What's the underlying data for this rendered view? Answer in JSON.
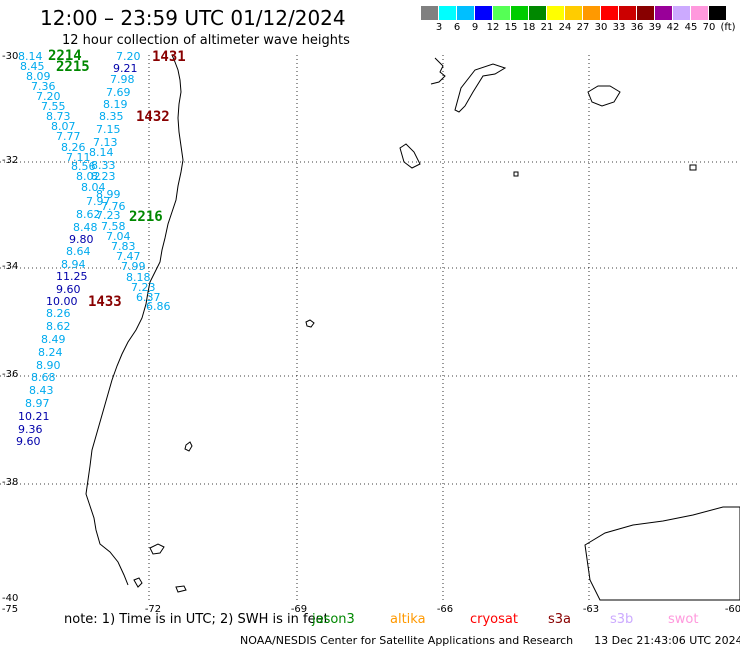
{
  "header": {
    "title": "12:00 – 23:59 UTC 01/12/2024",
    "subtitle": "12 hour collection of altimeter wave heights"
  },
  "color_scale": {
    "unit": "(ft)",
    "colors": [
      "#808080",
      "#00ffff",
      "#00bfff",
      "#0000ff",
      "#55ff55",
      "#00cc00",
      "#008800",
      "#ffff00",
      "#ffcc00",
      "#ff9900",
      "#ff0000",
      "#cc0000",
      "#880000",
      "#990099",
      "#ccaaff",
      "#ff99dd",
      "#000000"
    ],
    "labels": [
      "3",
      "6",
      "9",
      "12",
      "15",
      "18",
      "21",
      "24",
      "27",
      "30",
      "33",
      "36",
      "39",
      "42",
      "45",
      "70"
    ]
  },
  "axes": {
    "lon_labels": [
      "-75",
      "-72",
      "-69",
      "-66",
      "-63",
      "-60"
    ],
    "lat_labels": [
      "-30",
      "-32",
      "-34",
      "-36",
      "-38",
      "-40"
    ]
  },
  "passes": [
    {
      "label": "2214",
      "color": "#008800"
    },
    {
      "label": "2215",
      "color": "#008800"
    },
    {
      "label": "1431",
      "color": "#880000"
    },
    {
      "label": "1432",
      "color": "#880000"
    },
    {
      "label": "2216",
      "color": "#008800"
    },
    {
      "label": "1433",
      "color": "#880000"
    }
  ],
  "wave_heights": [
    {
      "v": "8.14",
      "c": "#00aaee"
    },
    {
      "v": "8.45",
      "c": "#00aaee"
    },
    {
      "v": "8.09",
      "c": "#00aaee"
    },
    {
      "v": "7.36",
      "c": "#00aaee"
    },
    {
      "v": "7.20",
      "c": "#00aaee"
    },
    {
      "v": "7.55",
      "c": "#00aaee"
    },
    {
      "v": "8.73",
      "c": "#00aaee"
    },
    {
      "v": "8.07",
      "c": "#00aaee"
    },
    {
      "v": "7.77",
      "c": "#00aaee"
    },
    {
      "v": "8.26",
      "c": "#00aaee"
    },
    {
      "v": "7.11",
      "c": "#00aaee"
    },
    {
      "v": "8.56",
      "c": "#00aaee"
    },
    {
      "v": "8.33",
      "c": "#00aaee"
    },
    {
      "v": "8.02",
      "c": "#00aaee"
    },
    {
      "v": "8.23",
      "c": "#00aaee"
    },
    {
      "v": "8.04",
      "c": "#00aaee"
    },
    {
      "v": "8.99",
      "c": "#00aaee"
    },
    {
      "v": "7.97",
      "c": "#00aaee"
    },
    {
      "v": "7.76",
      "c": "#00aaee"
    },
    {
      "v": "8.62",
      "c": "#00aaee"
    },
    {
      "v": "7.23",
      "c": "#00aaee"
    },
    {
      "v": "8.48",
      "c": "#00aaee"
    },
    {
      "v": "7.58",
      "c": "#00aaee"
    },
    {
      "v": "9.80",
      "c": "#0000aa"
    },
    {
      "v": "7.04",
      "c": "#00aaee"
    },
    {
      "v": "8.64",
      "c": "#00aaee"
    },
    {
      "v": "7.83",
      "c": "#00aaee"
    },
    {
      "v": "7.47",
      "c": "#00aaee"
    },
    {
      "v": "8.94",
      "c": "#00aaee"
    },
    {
      "v": "7.99",
      "c": "#00aaee"
    },
    {
      "v": "11.25",
      "c": "#0000aa"
    },
    {
      "v": "8.18",
      "c": "#00aaee"
    },
    {
      "v": "7.23",
      "c": "#00aaee"
    },
    {
      "v": "9.60",
      "c": "#0000aa"
    },
    {
      "v": "6.37",
      "c": "#00aaee"
    },
    {
      "v": "10.00",
      "c": "#0000aa"
    },
    {
      "v": "6.86",
      "c": "#00aaee"
    },
    {
      "v": "8.26",
      "c": "#00aaee"
    },
    {
      "v": "8.62",
      "c": "#00aaee"
    },
    {
      "v": "8.49",
      "c": "#00aaee"
    },
    {
      "v": "8.24",
      "c": "#00aaee"
    },
    {
      "v": "8.90",
      "c": "#00aaee"
    },
    {
      "v": "8.68",
      "c": "#00aaee"
    },
    {
      "v": "8.43",
      "c": "#00aaee"
    },
    {
      "v": "8.97",
      "c": "#00aaee"
    },
    {
      "v": "10.21",
      "c": "#0000aa"
    },
    {
      "v": "9.36",
      "c": "#0000aa"
    },
    {
      "v": "9.60",
      "c": "#0000aa"
    },
    {
      "v": "7.20",
      "c": "#00aaee"
    },
    {
      "v": "9.21",
      "c": "#0000aa"
    },
    {
      "v": "7.98",
      "c": "#00aaee"
    },
    {
      "v": "7.69",
      "c": "#00aaee"
    },
    {
      "v": "8.19",
      "c": "#00aaee"
    },
    {
      "v": "8.35",
      "c": "#00aaee"
    },
    {
      "v": "7.15",
      "c": "#00aaee"
    },
    {
      "v": "7.13",
      "c": "#00aaee"
    },
    {
      "v": "8.14",
      "c": "#00aaee"
    }
  ],
  "note": "note:  1) Time is in UTC;  2) SWH is in feet",
  "satellites": [
    {
      "name": "jason3",
      "color": "#008800"
    },
    {
      "name": "altika",
      "color": "#ff9900"
    },
    {
      "name": "cryosat",
      "color": "#ff0000"
    },
    {
      "name": "s3a",
      "color": "#880000"
    },
    {
      "name": "s3b",
      "color": "#ccaaff"
    },
    {
      "name": "swot",
      "color": "#ff99dd"
    }
  ],
  "footer": "NOAA/NESDIS Center for Satellite Applications and Research      13 Dec 21:43:06 UTC 2024"
}
